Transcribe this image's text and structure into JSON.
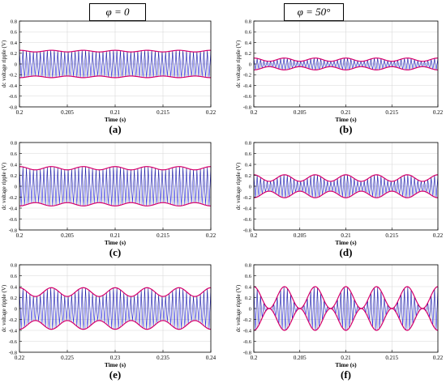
{
  "headers": [
    "φ = 0",
    "φ = 50°"
  ],
  "colors": {
    "envelope": "#d6006c",
    "wave": "#1f1fd8",
    "dark": "#000000",
    "grid": "#d8d8d8"
  },
  "chart_data": [
    {
      "id": "a",
      "label": "(a)",
      "type": "line",
      "xlabel": "Time (s)",
      "ylabel": "dc voltage ripple (V)",
      "xlim": [
        0.2,
        0.22
      ],
      "ylim": [
        -0.8,
        0.8
      ],
      "x_ticks": [
        0.2,
        0.205,
        0.21,
        0.215,
        0.22
      ],
      "x_tick_labels": [
        "0.2",
        "0.205",
        "0.21",
        "0.215",
        "0.22"
      ],
      "y_ticks": [
        -0.8,
        -0.6,
        -0.4,
        -0.2,
        0,
        0.2,
        0.4,
        0.6,
        0.8
      ],
      "y_tick_labels": [
        "-0.8",
        "-0.6",
        "-0.4",
        "-0.2",
        "0",
        "0.2",
        "0.4",
        "0.6",
        "0.8"
      ],
      "grid": true,
      "envelope_base": 0.24,
      "envelope_mod": 0.015,
      "envelope_cycles": 6
    },
    {
      "id": "b",
      "label": "(b)",
      "type": "line",
      "xlabel": "Time (s)",
      "ylabel": "dc voltage ripple (V)",
      "xlim": [
        0.2,
        0.22
      ],
      "ylim": [
        -0.8,
        0.8
      ],
      "x_ticks": [
        0.2,
        0.205,
        0.21,
        0.215,
        0.22
      ],
      "x_tick_labels": [
        "0.2",
        "0.205",
        "0.21",
        "0.215",
        "0.22"
      ],
      "y_ticks": [
        -0.8,
        -0.6,
        -0.4,
        -0.2,
        0,
        0.2,
        0.4,
        0.6,
        0.8
      ],
      "y_tick_labels": [
        "-0.8",
        "-0.6",
        "-0.4",
        "-0.2",
        "0",
        "0.2",
        "0.4",
        "0.6",
        "0.8"
      ],
      "grid": true,
      "envelope_base": 0.08,
      "envelope_mod": 0.03,
      "envelope_cycles": 6
    },
    {
      "id": "c",
      "label": "(c)",
      "type": "line",
      "xlabel": "Time (s)",
      "ylabel": "dc voltage ripple (V)",
      "xlim": [
        0.2,
        0.22
      ],
      "ylim": [
        -0.8,
        0.8
      ],
      "x_ticks": [
        0.2,
        0.205,
        0.21,
        0.215,
        0.22
      ],
      "x_tick_labels": [
        "0.2",
        "0.205",
        "0.21",
        "0.215",
        "0.22"
      ],
      "y_ticks": [
        -0.8,
        -0.6,
        -0.4,
        -0.2,
        0,
        0.2,
        0.4,
        0.6,
        0.8
      ],
      "y_tick_labels": [
        "-0.8",
        "-0.6",
        "-0.4",
        "-0.2",
        "0",
        "0.2",
        "0.4",
        "0.6",
        "0.8"
      ],
      "grid": true,
      "envelope_base": 0.33,
      "envelope_mod": 0.03,
      "envelope_cycles": 6
    },
    {
      "id": "d",
      "label": "(d)",
      "type": "line",
      "xlabel": "Time (s)",
      "ylabel": "dc voltage ripple (V)",
      "xlim": [
        0.2,
        0.22
      ],
      "ylim": [
        -0.8,
        0.8
      ],
      "x_ticks": [
        0.2,
        0.205,
        0.21,
        0.215,
        0.22
      ],
      "x_tick_labels": [
        "0.2",
        "0.205",
        "0.21",
        "0.215",
        "0.22"
      ],
      "y_ticks": [
        -0.8,
        -0.6,
        -0.4,
        -0.2,
        0,
        0.2,
        0.4,
        0.6,
        0.8
      ],
      "y_tick_labels": [
        "-0.8",
        "-0.6",
        "-0.4",
        "-0.2",
        "0",
        "0.2",
        "0.4",
        "0.6",
        "0.8"
      ],
      "grid": true,
      "envelope_base": 0.15,
      "envelope_mod": 0.06,
      "envelope_cycles": 6
    },
    {
      "id": "e",
      "label": "(e)",
      "type": "line",
      "xlabel": "Time (s)",
      "ylabel": "dc voltage ripple (V)",
      "xlim": [
        0.22,
        0.24
      ],
      "ylim": [
        -0.8,
        0.8
      ],
      "x_ticks": [
        0.22,
        0.225,
        0.23,
        0.235,
        0.24
      ],
      "x_tick_labels": [
        "0.22",
        "0.225",
        "0.23",
        "0.235",
        "0.24"
      ],
      "y_ticks": [
        -0.8,
        -0.6,
        -0.4,
        -0.2,
        0,
        0.2,
        0.4,
        0.6,
        0.8
      ],
      "y_tick_labels": [
        "-0.8",
        "-0.6",
        "-0.4",
        "-0.2",
        "0",
        "0.2",
        "0.4",
        "0.6",
        "0.8"
      ],
      "grid": true,
      "envelope_base": 0.3,
      "envelope_mod": 0.08,
      "envelope_cycles": 6
    },
    {
      "id": "f",
      "label": "(f)",
      "type": "line",
      "xlabel": "Time (s)",
      "ylabel": "dc voltage ripple (V)",
      "xlim": [
        0.2,
        0.22
      ],
      "ylim": [
        -0.8,
        0.8
      ],
      "x_ticks": [
        0.2,
        0.205,
        0.21,
        0.215,
        0.22
      ],
      "x_tick_labels": [
        "0.2",
        "0.205",
        "0.21",
        "0.215",
        "0.22"
      ],
      "y_ticks": [
        -0.8,
        -0.6,
        -0.4,
        -0.2,
        0,
        0.2,
        0.4,
        0.6,
        0.8
      ],
      "y_tick_labels": [
        "-0.8",
        "-0.6",
        "-0.4",
        "-0.2",
        "0",
        "0.2",
        "0.4",
        "0.6",
        "0.8"
      ],
      "grid": true,
      "envelope_base": 0.2,
      "envelope_mod": 0.2,
      "envelope_cycles": 6
    }
  ]
}
